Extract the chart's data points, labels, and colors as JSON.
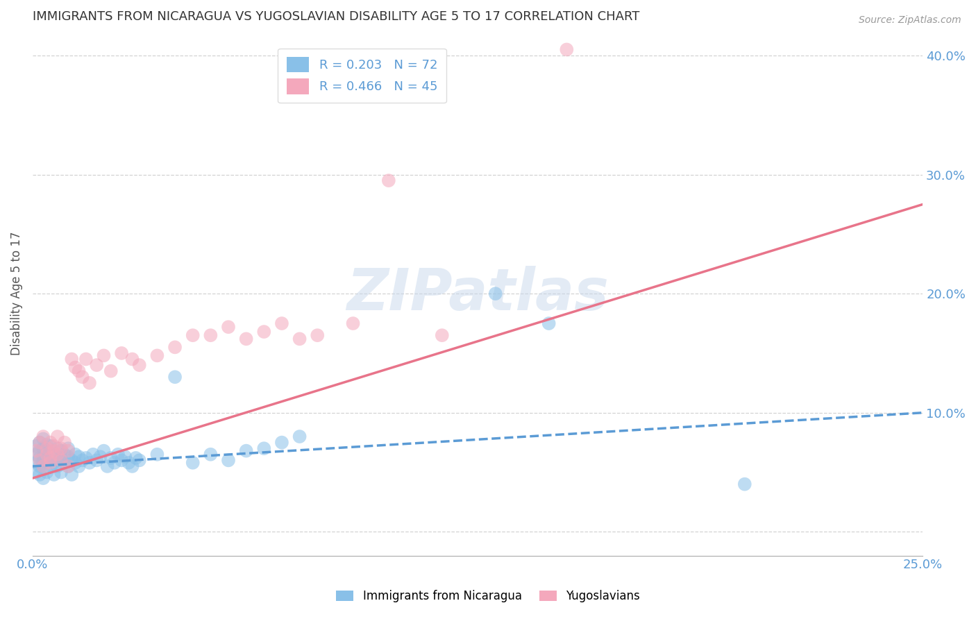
{
  "title": "IMMIGRANTS FROM NICARAGUA VS YUGOSLAVIAN DISABILITY AGE 5 TO 17 CORRELATION CHART",
  "source_text": "Source: ZipAtlas.com",
  "ylabel": "Disability Age 5 to 17",
  "xlim": [
    0.0,
    0.25
  ],
  "ylim": [
    -0.02,
    0.42
  ],
  "xticks": [
    0.0,
    0.05,
    0.1,
    0.15,
    0.2,
    0.25
  ],
  "xticklabels": [
    "0.0%",
    "",
    "",
    "",
    "",
    "25.0%"
  ],
  "yticks": [
    0.0,
    0.1,
    0.2,
    0.3,
    0.4
  ],
  "yticklabels": [
    "",
    "10.0%",
    "20.0%",
    "30.0%",
    "40.0%"
  ],
  "blue_R": 0.203,
  "blue_N": 72,
  "pink_R": 0.466,
  "pink_N": 45,
  "blue_color": "#89C0E8",
  "pink_color": "#F4A8BC",
  "trend_blue_color": "#5B9BD5",
  "trend_pink_color": "#E8748A",
  "watermark": "ZIPatlas",
  "legend_label_blue": "Immigrants from Nicaragua",
  "legend_label_pink": "Yugoslavians",
  "blue_trend_x0": 0.0,
  "blue_trend_y0": 0.055,
  "blue_trend_x1": 0.25,
  "blue_trend_y1": 0.1,
  "pink_trend_x0": 0.0,
  "pink_trend_y0": 0.045,
  "pink_trend_x1": 0.25,
  "pink_trend_y1": 0.275,
  "blue_x": [
    0.001,
    0.001,
    0.001,
    0.001,
    0.002,
    0.002,
    0.002,
    0.002,
    0.002,
    0.003,
    0.003,
    0.003,
    0.003,
    0.003,
    0.003,
    0.004,
    0.004,
    0.004,
    0.004,
    0.005,
    0.005,
    0.005,
    0.005,
    0.006,
    0.006,
    0.006,
    0.007,
    0.007,
    0.007,
    0.008,
    0.008,
    0.008,
    0.009,
    0.009,
    0.01,
    0.01,
    0.01,
    0.011,
    0.011,
    0.012,
    0.012,
    0.013,
    0.013,
    0.014,
    0.015,
    0.016,
    0.017,
    0.018,
    0.019,
    0.02,
    0.021,
    0.022,
    0.023,
    0.024,
    0.025,
    0.026,
    0.027,
    0.028,
    0.029,
    0.03,
    0.035,
    0.04,
    0.045,
    0.05,
    0.055,
    0.06,
    0.065,
    0.07,
    0.075,
    0.13,
    0.145,
    0.2
  ],
  "blue_y": [
    0.065,
    0.072,
    0.058,
    0.05,
    0.068,
    0.075,
    0.062,
    0.055,
    0.048,
    0.07,
    0.063,
    0.055,
    0.078,
    0.06,
    0.045,
    0.068,
    0.058,
    0.073,
    0.05,
    0.065,
    0.06,
    0.055,
    0.072,
    0.058,
    0.065,
    0.048,
    0.06,
    0.07,
    0.055,
    0.062,
    0.068,
    0.05,
    0.058,
    0.065,
    0.063,
    0.055,
    0.07,
    0.06,
    0.048,
    0.065,
    0.058,
    0.063,
    0.055,
    0.06,
    0.062,
    0.058,
    0.065,
    0.06,
    0.063,
    0.068,
    0.055,
    0.062,
    0.058,
    0.065,
    0.06,
    0.063,
    0.058,
    0.055,
    0.062,
    0.06,
    0.065,
    0.13,
    0.058,
    0.065,
    0.06,
    0.068,
    0.07,
    0.075,
    0.08,
    0.2,
    0.175,
    0.04
  ],
  "pink_x": [
    0.001,
    0.002,
    0.002,
    0.003,
    0.003,
    0.004,
    0.004,
    0.005,
    0.005,
    0.005,
    0.006,
    0.006,
    0.007,
    0.007,
    0.008,
    0.008,
    0.009,
    0.01,
    0.01,
    0.011,
    0.012,
    0.013,
    0.014,
    0.015,
    0.016,
    0.018,
    0.02,
    0.022,
    0.025,
    0.028,
    0.03,
    0.035,
    0.04,
    0.045,
    0.05,
    0.055,
    0.06,
    0.065,
    0.07,
    0.075,
    0.08,
    0.09,
    0.1,
    0.115,
    0.15
  ],
  "pink_y": [
    0.068,
    0.075,
    0.06,
    0.055,
    0.08,
    0.065,
    0.07,
    0.058,
    0.075,
    0.062,
    0.068,
    0.072,
    0.065,
    0.08,
    0.07,
    0.06,
    0.075,
    0.068,
    0.055,
    0.145,
    0.138,
    0.135,
    0.13,
    0.145,
    0.125,
    0.14,
    0.148,
    0.135,
    0.15,
    0.145,
    0.14,
    0.148,
    0.155,
    0.165,
    0.165,
    0.172,
    0.162,
    0.168,
    0.175,
    0.162,
    0.165,
    0.175,
    0.295,
    0.165,
    0.405
  ],
  "figsize": [
    14.06,
    8.92
  ],
  "dpi": 100
}
